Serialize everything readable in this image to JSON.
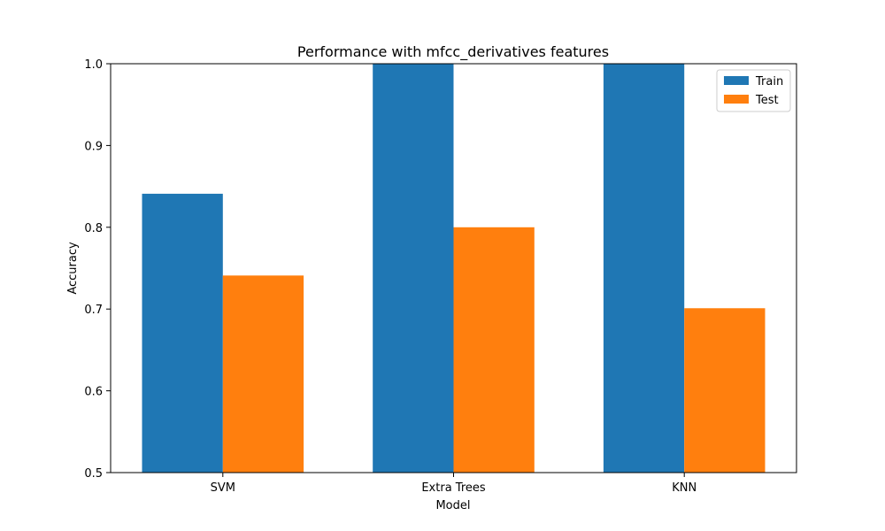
{
  "chart_data": {
    "type": "bar",
    "title": "Performance with mfcc_derivatives features",
    "xlabel": "Model",
    "ylabel": "Accuracy",
    "categories": [
      "SVM",
      "Extra Trees",
      "KNN"
    ],
    "series": [
      {
        "name": "Train",
        "values": [
          0.841,
          1.0,
          1.0
        ],
        "color": "#1f77b4"
      },
      {
        "name": "Test",
        "values": [
          0.741,
          0.8,
          0.701
        ],
        "color": "#ff7f0e"
      }
    ],
    "ylim": [
      0.5,
      1.0
    ],
    "yticks": [
      "0.5",
      "0.6",
      "0.7",
      "0.8",
      "0.9",
      "1.0"
    ],
    "grid": false,
    "legend_position": "top-right"
  }
}
